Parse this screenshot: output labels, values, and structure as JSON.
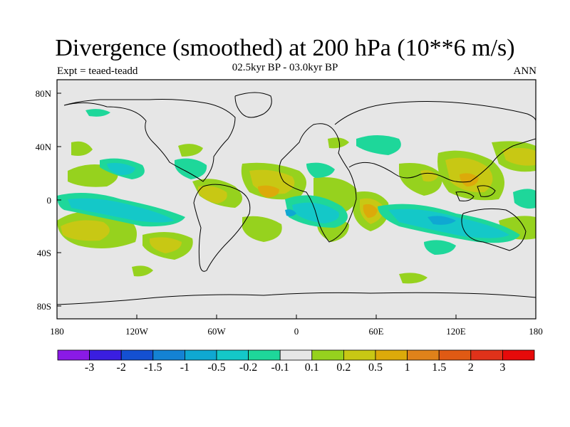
{
  "title": "Divergence (smoothed) at 200 hPa (10**6 m/s)",
  "experiment": "Expt = teaed-teadd",
  "period": "02.5kyr BP - 03.0kyr BP",
  "season": "ANN",
  "lat_ticks": [
    "80N",
    "40N",
    "0",
    "40S",
    "80S"
  ],
  "lon_ticks": [
    "180",
    "120W",
    "60W",
    "0",
    "60E",
    "120E",
    "180"
  ],
  "colorbar": {
    "labels": [
      "-3",
      "-2",
      "-1.5",
      "-1",
      "-0.5",
      "-0.2",
      "-0.1",
      "0.1",
      "0.2",
      "0.5",
      "1",
      "1.5",
      "2",
      "3"
    ],
    "colors": [
      "#8a1ae6",
      "#3a1ee0",
      "#1450d2",
      "#1482d4",
      "#0fa8d2",
      "#14c8c8",
      "#1ed79a",
      "#e6e6e6",
      "#96d21e",
      "#c8c814",
      "#dcaa0a",
      "#e0821a",
      "#e05a14",
      "#e0321a",
      "#e60a0a"
    ]
  },
  "colors": {
    "ocean": "#e6e6e6",
    "coast": "#000000"
  }
}
